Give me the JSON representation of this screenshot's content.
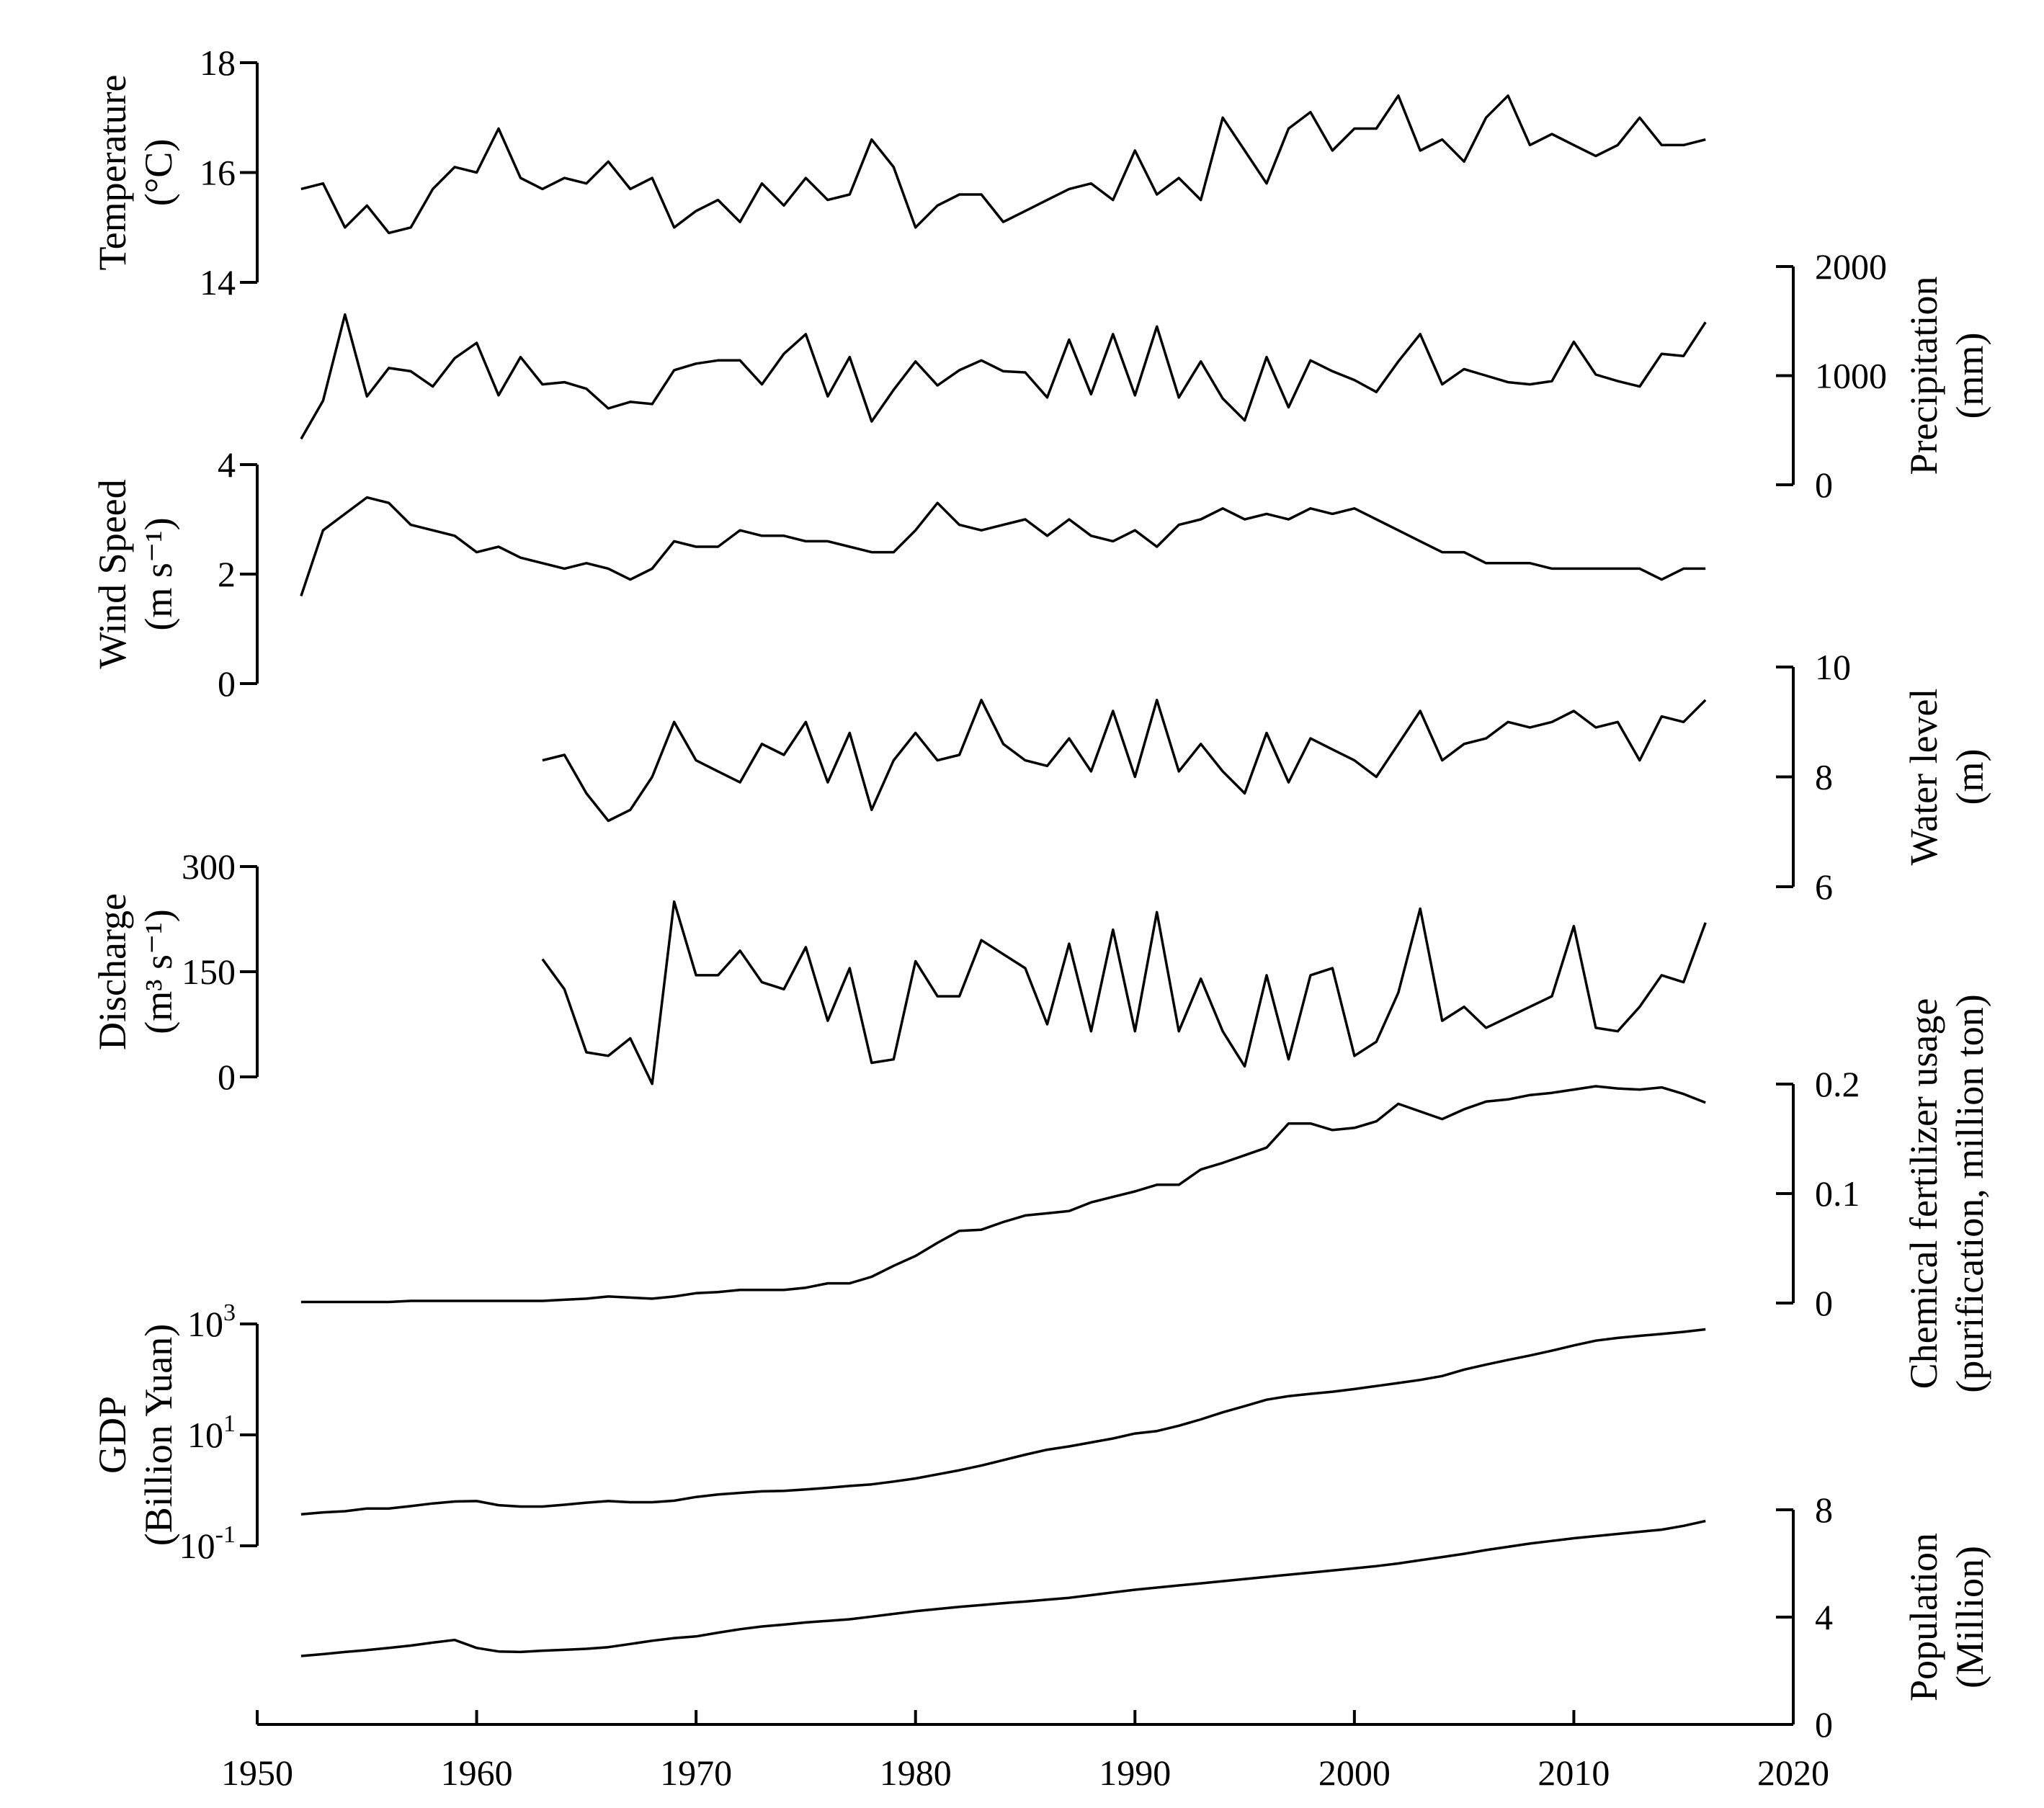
{
  "chart_data": {
    "type": "line",
    "x_axis": {
      "ticks": [
        1950,
        1960,
        1970,
        1980,
        1990,
        2000,
        2010,
        2020
      ],
      "tick_labels": [
        "1950",
        "1960",
        "1970",
        "1980",
        "1990",
        "2000",
        "2010",
        "2020"
      ],
      "range": [
        1950,
        2020
      ]
    },
    "panels": [
      {
        "id": "temperature",
        "title_lines": [
          "Temperature",
          "(°C)"
        ],
        "axis_side": "left",
        "scale": "linear",
        "ylim": [
          14,
          18
        ],
        "ticks": [
          14,
          16,
          18
        ],
        "tick_labels": [
          "14",
          "16",
          "18"
        ],
        "x_start": 1952,
        "values": [
          15.7,
          15.8,
          15.0,
          15.4,
          14.9,
          15.0,
          15.7,
          16.1,
          16.0,
          16.8,
          15.9,
          15.7,
          15.9,
          15.8,
          16.2,
          15.7,
          15.9,
          15.0,
          15.3,
          15.5,
          15.1,
          15.8,
          15.4,
          15.9,
          15.5,
          15.6,
          16.6,
          16.1,
          15.0,
          15.4,
          15.6,
          15.6,
          15.1,
          15.3,
          15.5,
          15.7,
          15.8,
          15.5,
          16.4,
          15.6,
          15.9,
          15.5,
          17.0,
          16.4,
          15.8,
          16.8,
          17.1,
          16.4,
          16.8,
          16.8,
          17.4,
          16.4,
          16.6,
          16.2,
          17.0,
          17.4,
          16.5,
          16.7,
          16.5,
          16.3,
          16.5,
          17.0,
          16.5,
          16.5,
          16.6
        ]
      },
      {
        "id": "precipitation",
        "title_lines": [
          "Precipitation",
          "(mm)"
        ],
        "axis_side": "right",
        "scale": "linear",
        "ylim": [
          0,
          2000
        ],
        "ticks": [
          0,
          1000,
          2000
        ],
        "tick_labels": [
          "0",
          "1000",
          "2000"
        ],
        "x_start": 1952,
        "values": [
          420,
          770,
          1560,
          810,
          1070,
          1040,
          900,
          1160,
          1300,
          820,
          1170,
          920,
          940,
          880,
          700,
          760,
          740,
          1050,
          1110,
          1140,
          1140,
          920,
          1200,
          1380,
          810,
          1170,
          580,
          870,
          1130,
          910,
          1050,
          1140,
          1040,
          1030,
          800,
          1330,
          830,
          1380,
          820,
          1450,
          800,
          1130,
          790,
          590,
          1170,
          710,
          1140,
          1040,
          960,
          850,
          1130,
          1380,
          920,
          1060,
          1000,
          940,
          920,
          950,
          1310,
          1010,
          950,
          900,
          1200,
          1180,
          1490
        ]
      },
      {
        "id": "wind_speed",
        "title_lines": [
          "Wind Speed",
          "(m s⁻¹)"
        ],
        "axis_side": "left",
        "scale": "linear",
        "ylim": [
          0,
          4
        ],
        "ticks": [
          0,
          2,
          4
        ],
        "tick_labels": [
          "0",
          "2",
          "4"
        ],
        "x_start": 1952,
        "values": [
          1.6,
          2.8,
          3.1,
          3.4,
          3.3,
          2.9,
          2.8,
          2.7,
          2.4,
          2.5,
          2.3,
          2.2,
          2.1,
          2.2,
          2.1,
          1.9,
          2.1,
          2.6,
          2.5,
          2.5,
          2.8,
          2.7,
          2.7,
          2.6,
          2.6,
          2.5,
          2.4,
          2.4,
          2.8,
          3.3,
          2.9,
          2.8,
          2.9,
          3.0,
          2.7,
          3.0,
          2.7,
          2.6,
          2.8,
          2.5,
          2.9,
          3.0,
          3.2,
          3.0,
          3.1,
          3.0,
          3.2,
          3.1,
          3.2,
          3.0,
          2.8,
          2.6,
          2.4,
          2.4,
          2.2,
          2.2,
          2.2,
          2.1,
          2.1,
          2.1,
          2.1,
          2.1,
          1.9,
          2.1,
          2.1
        ]
      },
      {
        "id": "water_level",
        "title_lines": [
          "Water level",
          "(m)"
        ],
        "axis_side": "right",
        "scale": "linear",
        "ylim": [
          6,
          10
        ],
        "ticks": [
          6,
          8,
          10
        ],
        "tick_labels": [
          "6",
          "8",
          "10"
        ],
        "x_start": 1963,
        "values": [
          8.3,
          8.4,
          7.7,
          7.2,
          7.4,
          8.0,
          9.0,
          8.3,
          8.1,
          7.9,
          8.6,
          8.4,
          9.0,
          7.9,
          8.8,
          7.4,
          8.3,
          8.8,
          8.3,
          8.4,
          9.4,
          8.6,
          8.3,
          8.2,
          8.7,
          8.1,
          9.2,
          8.0,
          9.4,
          8.1,
          8.6,
          8.1,
          7.7,
          8.8,
          7.9,
          8.7,
          8.5,
          8.3,
          8.0,
          8.6,
          9.2,
          8.3,
          8.6,
          8.7,
          9.0,
          8.9,
          9.0,
          9.2,
          8.9,
          9.0,
          8.3,
          9.1,
          9.0,
          9.4
        ]
      },
      {
        "id": "discharge",
        "title_lines": [
          "Discharge",
          "(m³ s⁻¹)"
        ],
        "axis_side": "left",
        "scale": "linear",
        "ylim": [
          0,
          300
        ],
        "ticks": [
          0,
          150,
          300
        ],
        "tick_labels": [
          "0",
          "150",
          "300"
        ],
        "x_start": 1963,
        "values": [
          168,
          125,
          35,
          30,
          55,
          -10,
          250,
          145,
          145,
          180,
          135,
          125,
          185,
          80,
          155,
          20,
          25,
          165,
          115,
          115,
          195,
          175,
          155,
          75,
          190,
          65,
          210,
          65,
          235,
          65,
          140,
          65,
          15,
          145,
          25,
          145,
          155,
          30,
          50,
          120,
          240,
          80,
          100,
          70,
          85,
          100,
          115,
          215,
          70,
          65,
          100,
          145,
          135,
          220
        ]
      },
      {
        "id": "fertilizer",
        "title_lines": [
          "Chemical fertilizer usage",
          "(purification, million ton)"
        ],
        "axis_side": "right",
        "scale": "linear",
        "ylim": [
          0,
          0.2
        ],
        "ticks": [
          0,
          0.1,
          0.2
        ],
        "tick_labels": [
          "0",
          "0.1",
          "0.2"
        ],
        "x_start": 1952,
        "values": [
          0.001,
          0.001,
          0.001,
          0.001,
          0.001,
          0.002,
          0.002,
          0.002,
          0.002,
          0.002,
          0.002,
          0.002,
          0.003,
          0.004,
          0.006,
          0.005,
          0.004,
          0.006,
          0.009,
          0.01,
          0.012,
          0.012,
          0.012,
          0.014,
          0.018,
          0.018,
          0.024,
          0.034,
          0.043,
          0.055,
          0.066,
          0.067,
          0.074,
          0.08,
          0.082,
          0.084,
          0.092,
          0.097,
          0.102,
          0.108,
          0.108,
          0.122,
          0.128,
          0.135,
          0.142,
          0.164,
          0.164,
          0.158,
          0.16,
          0.166,
          0.182,
          0.175,
          0.168,
          0.177,
          0.184,
          0.186,
          0.19,
          0.192,
          0.195,
          0.198,
          0.196,
          0.195,
          0.197,
          0.191,
          0.183
        ]
      },
      {
        "id": "gdp",
        "title_lines": [
          "GDP",
          "(Billion Yuan)"
        ],
        "axis_side": "left",
        "scale": "log",
        "ylim": [
          0.1,
          1000
        ],
        "ticks": [
          0.1,
          10,
          1000
        ],
        "tick_label_parts": [
          [
            "10",
            "-1"
          ],
          [
            "10",
            "1"
          ],
          [
            "10",
            "3"
          ]
        ],
        "x_start": 1952,
        "values": [
          0.37,
          0.4,
          0.42,
          0.47,
          0.47,
          0.52,
          0.58,
          0.63,
          0.64,
          0.54,
          0.51,
          0.51,
          0.55,
          0.6,
          0.64,
          0.61,
          0.61,
          0.65,
          0.76,
          0.84,
          0.9,
          0.96,
          0.98,
          1.04,
          1.11,
          1.2,
          1.28,
          1.44,
          1.64,
          1.94,
          2.3,
          2.8,
          3.5,
          4.4,
          5.4,
          6.2,
          7.3,
          8.6,
          10.6,
          11.7,
          14.6,
          19.0,
          25.5,
          33.0,
          43.0,
          50.0,
          55.0,
          60.0,
          67.0,
          76.0,
          86.0,
          98.0,
          115,
          150,
          185,
          225,
          270,
          330,
          410,
          500,
          560,
          610,
          660,
          720,
          800
        ]
      },
      {
        "id": "population",
        "title_lines": [
          "Population",
          "(Million)"
        ],
        "axis_side": "right",
        "scale": "linear",
        "ylim": [
          0,
          8
        ],
        "ticks": [
          0,
          4,
          8
        ],
        "tick_labels": [
          "0",
          "4",
          "8"
        ],
        "x_start": 1952,
        "values": [
          2.55,
          2.62,
          2.7,
          2.77,
          2.85,
          2.94,
          3.05,
          3.15,
          2.85,
          2.72,
          2.7,
          2.75,
          2.78,
          2.82,
          2.88,
          3.0,
          3.12,
          3.22,
          3.28,
          3.42,
          3.55,
          3.65,
          3.72,
          3.8,
          3.86,
          3.92,
          4.02,
          4.12,
          4.22,
          4.3,
          4.38,
          4.45,
          4.52,
          4.58,
          4.65,
          4.72,
          4.82,
          4.92,
          5.02,
          5.1,
          5.18,
          5.26,
          5.34,
          5.42,
          5.5,
          5.58,
          5.66,
          5.74,
          5.82,
          5.9,
          6.0,
          6.12,
          6.24,
          6.36,
          6.5,
          6.62,
          6.74,
          6.84,
          6.94,
          7.02,
          7.1,
          7.18,
          7.26,
          7.4,
          7.58
        ]
      }
    ]
  }
}
